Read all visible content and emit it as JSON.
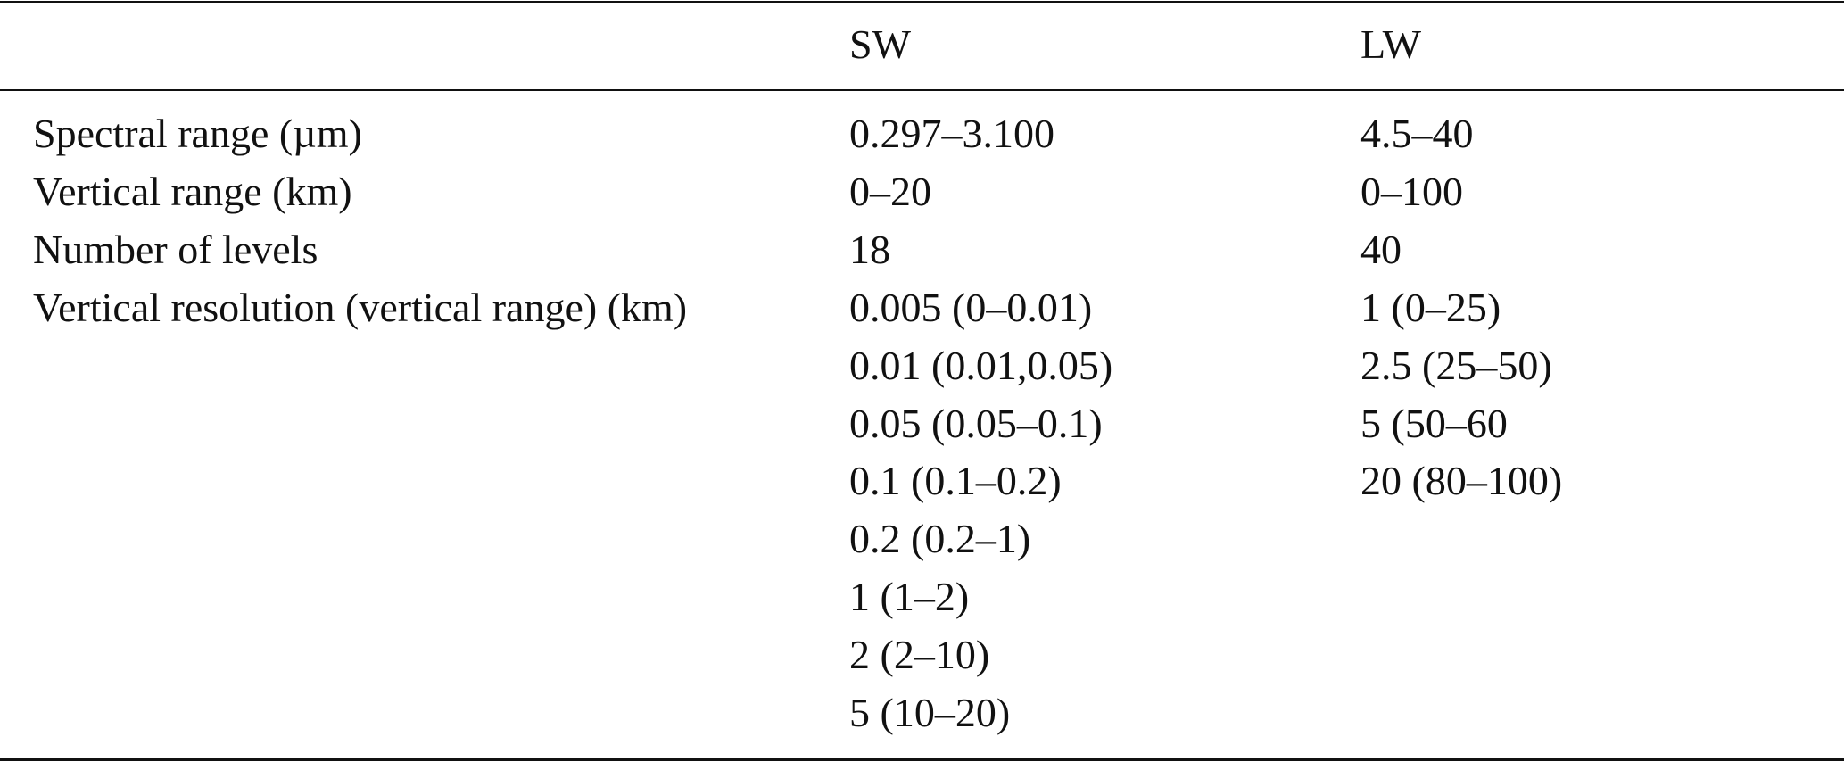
{
  "table": {
    "columns": [
      "SW",
      "LW"
    ],
    "rows": [
      {
        "label": "Spectral range (µm)",
        "sw": "0.297–3.100",
        "lw": "4.5–40"
      },
      {
        "label": "Vertical range (km)",
        "sw": "0–20",
        "lw": "0–100"
      },
      {
        "label": "Number of levels",
        "sw": "18",
        "lw": "40"
      }
    ],
    "vertical_resolution": {
      "label": "Vertical resolution (vertical range) (km)",
      "sw": [
        "0.005 (0–0.01)",
        "0.01 (0.01,0.05)",
        "0.05 (0.05–0.1)",
        "0.1 (0.1–0.2)",
        "0.2 (0.2–1)",
        "1 (1–2)",
        "2 (2–10)",
        "5 (10–20)"
      ],
      "lw": [
        "1 (0–25)",
        "2.5 (25–50)",
        "5 (50–60",
        "20 (80–100)"
      ]
    }
  }
}
